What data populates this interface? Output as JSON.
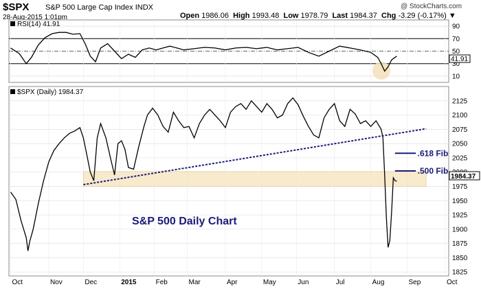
{
  "header": {
    "symbol": "$SPX",
    "name": "S&P 500 Large Cap Index",
    "exchange": "INDX",
    "date": "28-Aug-2015 1:01pm",
    "watermark": "@ StockCharts.com",
    "open_label": "Open",
    "open": "1986.06",
    "high_label": "High",
    "high": "1993.48",
    "low_label": "Low",
    "low": "1978.79",
    "last_label": "Last",
    "last": "1984.37",
    "chg_label": "Chg",
    "chg": "-3.29 (-0.17%)"
  },
  "rsi_panel": {
    "label": "RSI(14) 41.91",
    "current_value_label": "41.91",
    "current_value": 41.91,
    "tick_labels": [
      "90",
      "70",
      "50",
      "30",
      "10"
    ],
    "ticks": [
      90,
      70,
      50,
      30,
      10
    ],
    "ylim": [
      0,
      100
    ]
  },
  "price_panel": {
    "label": "$SPX (Daily) 1984.37",
    "last_value_label": "1984.37",
    "tick_labels": [
      "2125",
      "2100",
      "2075",
      "2050",
      "2025",
      "2000",
      "1975",
      "1950",
      "1925",
      "1900",
      "1875",
      "1850",
      "1825"
    ],
    "ticks": [
      2125,
      2100,
      2075,
      2050,
      2025,
      2000,
      1975,
      1950,
      1925,
      1900,
      1875,
      1850,
      1825
    ],
    "ylim": [
      1818,
      2150
    ]
  },
  "x_axis": {
    "labels": [
      {
        "text": "Oct",
        "pos": 0,
        "bold": false
      },
      {
        "text": "Nov",
        "pos": 22,
        "bold": false
      },
      {
        "text": "Dec",
        "pos": 42,
        "bold": false
      },
      {
        "text": "2015",
        "pos": 63,
        "bold": true
      },
      {
        "text": "Feb",
        "pos": 83,
        "bold": false
      },
      {
        "text": "Mar",
        "pos": 102,
        "bold": false
      },
      {
        "text": "Apr",
        "pos": 124,
        "bold": false
      },
      {
        "text": "May",
        "pos": 145,
        "bold": false
      },
      {
        "text": "Jun",
        "pos": 165,
        "bold": false
      },
      {
        "text": "Jul",
        "pos": 187,
        "bold": false
      },
      {
        "text": "Aug",
        "pos": 208,
        "bold": false
      },
      {
        "text": "Sep",
        "pos": 229,
        "bold": false
      },
      {
        "text": "Oct",
        "pos": 251,
        "bold": false
      }
    ],
    "xlim": [
      -1,
      253
    ]
  },
  "chart_data": {
    "type": "line",
    "title": "S&P 500 Daily Chart",
    "series": [
      {
        "name": "$SPX (Daily)",
        "x": [
          0,
          3,
          6,
          9,
          10,
          11,
          13,
          16,
          19,
          22,
          25,
          28,
          31,
          34,
          37,
          40,
          42,
          44,
          46,
          48,
          50,
          52,
          55,
          58,
          60,
          62,
          64,
          66,
          68,
          71,
          74,
          77,
          79,
          82,
          85,
          88,
          91,
          94,
          97,
          100,
          103,
          106,
          109,
          112,
          115,
          118,
          121,
          124,
          127,
          130,
          133,
          136,
          139,
          142,
          145,
          148,
          151,
          154,
          157,
          160,
          163,
          166,
          169,
          172,
          175,
          178,
          181,
          184,
          187,
          190,
          193,
          196,
          199,
          202,
          205,
          208,
          211,
          214,
          215,
          216,
          217,
          218,
          219,
          220,
          221,
          222,
          223
        ],
        "values": [
          1965,
          1952,
          1915,
          1885,
          1862,
          1878,
          1900,
          1945,
          1985,
          2018,
          2038,
          2050,
          2060,
          2068,
          2072,
          2078,
          2060,
          2030,
          2000,
          1985,
          2060,
          2085,
          2060,
          2020,
          1995,
          2050,
          2055,
          2040,
          2008,
          2005,
          2045,
          2080,
          2100,
          2112,
          2100,
          2080,
          2070,
          2105,
          2090,
          2078,
          2080,
          2060,
          2085,
          2100,
          2110,
          2100,
          2090,
          2078,
          2105,
          2115,
          2120,
          2110,
          2125,
          2115,
          2105,
          2120,
          2110,
          2095,
          2100,
          2120,
          2130,
          2118,
          2098,
          2080,
          2065,
          2060,
          2095,
          2110,
          2120,
          2090,
          2080,
          2110,
          2102,
          2085,
          2090,
          2080,
          2090,
          2075,
          2060,
          1995,
          1920,
          1868,
          1880,
          1930,
          1990,
          1985,
          1984
        ]
      }
    ],
    "rsi": {
      "x": [
        0,
        5,
        9,
        12,
        16,
        20,
        24,
        28,
        32,
        36,
        40,
        43,
        46,
        49,
        52,
        56,
        60,
        64,
        68,
        72,
        76,
        80,
        84,
        88,
        92,
        96,
        100,
        106,
        112,
        118,
        124,
        130,
        136,
        142,
        148,
        154,
        160,
        166,
        172,
        178,
        184,
        190,
        196,
        202,
        208,
        212,
        214,
        216,
        218,
        220,
        223
      ],
      "values": [
        55,
        46,
        30,
        40,
        60,
        72,
        78,
        80,
        80,
        77,
        78,
        62,
        42,
        33,
        55,
        62,
        50,
        38,
        45,
        40,
        52,
        55,
        52,
        55,
        58,
        55,
        52,
        54,
        56,
        55,
        52,
        55,
        56,
        54,
        56,
        52,
        54,
        56,
        48,
        42,
        50,
        58,
        55,
        52,
        48,
        40,
        30,
        18,
        25,
        36,
        42
      ]
    },
    "fib_levels": [
      {
        "label": ".618 Fib",
        "value": 2033
      },
      {
        "label": ".500 Fib",
        "value": 2002
      }
    ],
    "support_zone": {
      "low": 1975,
      "high": 2001
    },
    "trendline": {
      "x": [
        42,
        240
      ],
      "values": [
        1978,
        2076
      ]
    },
    "grid": true
  }
}
